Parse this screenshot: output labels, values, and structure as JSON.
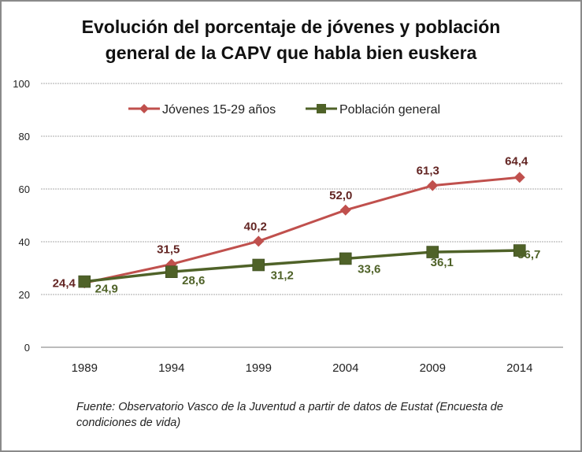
{
  "chart_data": {
    "type": "line",
    "title_lines": [
      "Evolución del porcentaje de jóvenes y población",
      "general de la CAPV que habla bien euskera"
    ],
    "xlabel": "",
    "ylabel": "",
    "categories": [
      "1989",
      "1994",
      "1999",
      "2004",
      "2009",
      "2014"
    ],
    "ylim": [
      0,
      100
    ],
    "yticks": [
      0,
      20,
      40,
      60,
      80,
      100
    ],
    "ytick_labels": [
      "0",
      "20",
      "40",
      "60",
      "80",
      "100"
    ],
    "grid": true,
    "legend_position": "top-center",
    "series": [
      {
        "name": "Jóvenes 15-29 años",
        "color": "#C0504D",
        "label_color": "#632523",
        "marker": "diamond",
        "values": [
          24.4,
          31.5,
          40.2,
          52.0,
          61.3,
          64.4
        ],
        "labels": [
          "24,4",
          "31,5",
          "40,2",
          "52,0",
          "61,3",
          "64,4"
        ]
      },
      {
        "name": "Población general",
        "color": "#4F6228",
        "label_color": "#4F6228",
        "marker": "square",
        "values": [
          24.9,
          28.6,
          31.2,
          33.6,
          36.1,
          36.7
        ],
        "labels": [
          "24,9",
          "28,6",
          "31,2",
          "33,6",
          "36,1",
          "36,7"
        ]
      }
    ]
  },
  "source_note": "Fuente: Observatorio Vasco de la Juventud a partir de datos de Eustat (Encuesta de condiciones de vida)"
}
